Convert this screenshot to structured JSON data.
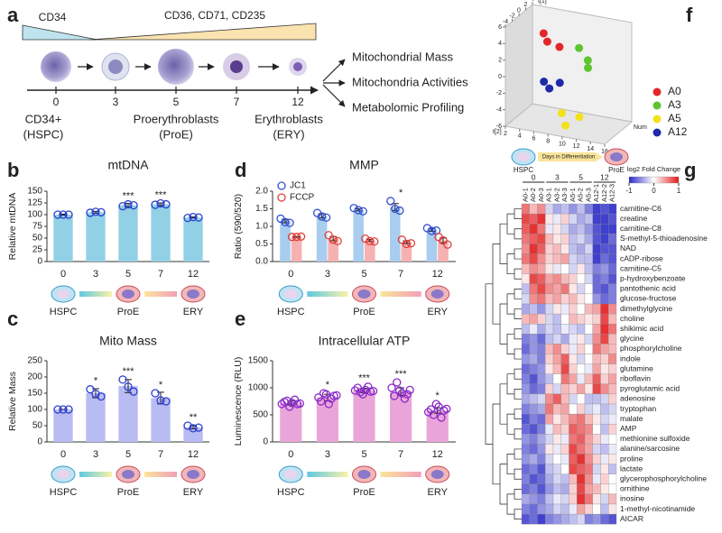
{
  "panel_labels": [
    "a",
    "b",
    "c",
    "d",
    "e",
    "f",
    "g"
  ],
  "panel_a": {
    "markers": [
      "CD34",
      "CD36, CD71, CD235"
    ],
    "days": [
      "0",
      "3",
      "5",
      "7",
      "12"
    ],
    "stages": [
      [
        "CD34+",
        "(HSPC)"
      ],
      [
        "Proerythroblasts",
        "(ProE)"
      ],
      [
        "Erythroblasts",
        "(ERY)"
      ]
    ],
    "readouts": [
      "Mitochondrial Mass",
      "Mitochondria Activities",
      "Metabolomic Profiling"
    ]
  },
  "chart_data": [
    {
      "type": "bar",
      "title": "mtDNA",
      "ylabel": "Relative mtDNA",
      "categories": [
        "0",
        "3",
        "5",
        "7",
        "12"
      ],
      "values": [
        100,
        105,
        120,
        122,
        94
      ],
      "errors": [
        1,
        2,
        4,
        3,
        1
      ],
      "replicates": [
        [
          100,
          100,
          100
        ],
        [
          104,
          106,
          105
        ],
        [
          118,
          122,
          120
        ],
        [
          121,
          124,
          122
        ],
        [
          93,
          95,
          94
        ]
      ],
      "annotations": [
        null,
        null,
        "***",
        "***",
        null
      ],
      "color": "#92d0e6",
      "marker_color": "#2b3fd0",
      "ylim": [
        0,
        150
      ],
      "yticks": [
        0,
        25,
        50,
        75,
        100,
        125,
        150
      ],
      "stage_labels": [
        "HSPC",
        "ProE",
        "ERY"
      ]
    },
    {
      "type": "bar",
      "title": "Mito Mass",
      "ylabel": "Relative Mass",
      "categories": [
        "0",
        "3",
        "5",
        "7",
        "12"
      ],
      "values": [
        100,
        150,
        172,
        135,
        45
      ],
      "errors": [
        0,
        14,
        20,
        18,
        5
      ],
      "replicates": [
        [
          100,
          100,
          100
        ],
        [
          162,
          148,
          140
        ],
        [
          192,
          170,
          155
        ],
        [
          150,
          128,
          125
        ],
        [
          50,
          42,
          44
        ]
      ],
      "annotations": [
        null,
        "*",
        "***",
        "*",
        "**"
      ],
      "color": "#b9bcf2",
      "marker_color": "#2b3fd0",
      "ylim": [
        0,
        250
      ],
      "yticks": [
        0,
        50,
        100,
        150,
        200,
        250
      ],
      "stage_labels": [
        "HSPC",
        "ProE",
        "ERY"
      ]
    },
    {
      "type": "bar",
      "title": "MMP",
      "ylabel": "Ratio (590/520)",
      "categories": [
        "0",
        "3",
        "5",
        "7",
        "12"
      ],
      "series": [
        {
          "name": "JC1",
          "color": "#a8cdee",
          "marker_color": "#3350d0",
          "values": [
            1.15,
            1.3,
            1.47,
            1.55,
            0.9
          ],
          "errors": [
            0.05,
            0.06,
            0.03,
            0.1,
            0.04
          ],
          "replicates": [
            [
              1.22,
              1.12,
              1.1
            ],
            [
              1.38,
              1.28,
              1.25
            ],
            [
              1.52,
              1.46,
              1.43
            ],
            [
              1.72,
              1.5,
              1.45
            ],
            [
              0.95,
              0.87,
              0.88
            ]
          ]
        },
        {
          "name": "FCCP",
          "color": "#f6b1b1",
          "marker_color": "#e0403a",
          "values": [
            0.7,
            0.65,
            0.6,
            0.55,
            0.6
          ],
          "errors": [
            0.01,
            0.06,
            0.03,
            0.04,
            0.07
          ],
          "replicates": [
            [
              0.7,
              0.7,
              0.71
            ],
            [
              0.75,
              0.62,
              0.58
            ],
            [
              0.65,
              0.58,
              0.57
            ],
            [
              0.62,
              0.5,
              0.52
            ],
            [
              0.7,
              0.6,
              0.48
            ]
          ]
        }
      ],
      "annotations": [
        null,
        null,
        null,
        "*",
        null
      ],
      "ylim": [
        0,
        2
      ],
      "yticks": [
        {
          "value": 0,
          "label": "0.0"
        },
        0.5,
        {
          "value": 1,
          "label": "1.0"
        },
        1.5,
        {
          "value": 2,
          "label": "2.0"
        }
      ],
      "stage_labels": [
        "HSPC",
        "ProE",
        "ERY"
      ]
    },
    {
      "type": "bar",
      "title": "Intracellular ATP",
      "ylabel": "Luminescence (RLU)",
      "categories": [
        "0",
        "3",
        "5",
        "7",
        "12"
      ],
      "values": [
        720,
        820,
        950,
        930,
        580
      ],
      "errors": [
        40,
        60,
        40,
        70,
        50
      ],
      "replicates": [
        [
          700,
          740,
          760,
          650,
          720,
          780,
          700,
          710
        ],
        [
          820,
          750,
          900,
          880,
          700,
          800,
          850,
          860
        ],
        [
          950,
          1000,
          920,
          880,
          960,
          1020,
          930,
          940
        ],
        [
          1000,
          850,
          1100,
          950,
          900,
          800,
          880,
          960
        ],
        [
          550,
          600,
          500,
          700,
          650,
          450,
          580,
          610
        ]
      ],
      "annotations": [
        null,
        "*",
        "***",
        "***",
        "*"
      ],
      "color": "#e9a5d9",
      "marker_color": "#8a2bc8",
      "ylim": [
        0,
        1500
      ],
      "yticks": [
        0,
        500,
        1000,
        1500
      ],
      "stage_labels": [
        "HSPC",
        "ProE",
        "ERY"
      ]
    },
    {
      "type": "scatter3d",
      "xlabel": "Num",
      "ylabel": "t[2]",
      "zlabel": "t[1]",
      "xlim": [
        2,
        16
      ],
      "xticks": [
        2,
        4,
        6,
        8,
        10,
        12,
        14,
        16
      ],
      "ylim": [
        -4,
        4
      ],
      "yticks": [
        -4,
        -2,
        0,
        2,
        4
      ],
      "zlim": [
        -6,
        6
      ],
      "zticks": [
        -6,
        -4,
        -2,
        0,
        2,
        4,
        6
      ],
      "series": [
        {
          "name": "A0",
          "color": "#e3262b",
          "x": [
            5,
            6,
            7
          ],
          "y": [
            1,
            0,
            1.5
          ],
          "z": [
            4,
            3.5,
            2.5
          ]
        },
        {
          "name": "A3",
          "color": "#5fc431",
          "x": [
            10,
            11,
            11.5
          ],
          "y": [
            1,
            1.5,
            0.5
          ],
          "z": [
            3,
            1.5,
            1
          ]
        },
        {
          "name": "A5",
          "color": "#f2e21b",
          "x": [
            9,
            10,
            11
          ],
          "y": [
            -2,
            -3,
            -1
          ],
          "z": [
            -4,
            -5,
            -4.5
          ]
        },
        {
          "name": "A12",
          "color": "#1e2aa8",
          "x": [
            6,
            7,
            8
          ],
          "y": [
            -1,
            -1.5,
            -0.5
          ],
          "z": [
            -1,
            -1.5,
            -1
          ]
        }
      ],
      "legend": "right"
    },
    {
      "type": "heatmap",
      "header": {
        "start": "HSPC",
        "end": "ProE",
        "label": "Days in Differentiation"
      },
      "group_labels": [
        "0",
        "3",
        "5",
        "12"
      ],
      "column_labels": [
        "A0-1",
        "A0-2",
        "A0-3",
        "A3-1",
        "A3-2",
        "A3-3",
        "A5-1",
        "A5-2",
        "A5-3",
        "A12-1",
        "A12-2",
        "A12-3"
      ],
      "row_labels": [
        "carnitine-C6",
        "creatine",
        "carnitine-C8",
        "S-methyl-5-thioadenosine",
        "NAD",
        "cADP-ribose",
        "carnitine-C5",
        "p-hydroxybenzoate",
        "pantothenic acid",
        "glucose-fructose",
        "dimethylglycine",
        "choline",
        "shikimic acid",
        "glycine",
        "phosphorylcholine",
        "indole",
        "glutamine",
        "riboflavin",
        "pyroglutamic acid",
        "adenosine",
        "tryptophan",
        "malate",
        "AMP",
        "methionine sulfoxide",
        "alanine/sarcosine",
        "proline",
        "lactate",
        "glycerophosphorylcholine",
        "ornithine",
        "inosine",
        "1-methyl-nicotinamide",
        "AICAR"
      ],
      "values": [
        [
          0.6,
          0.3,
          0.5,
          -0.2,
          -0.4,
          -0.3,
          -0.5,
          -0.3,
          -0.6,
          -0.9,
          -0.8,
          -0.9
        ],
        [
          0.8,
          0.7,
          0.9,
          0.1,
          -0.1,
          0.2,
          -0.2,
          -0.4,
          -0.3,
          -0.9,
          -0.9,
          -0.8
        ],
        [
          0.7,
          0.9,
          0.6,
          -0.1,
          0.1,
          -0.2,
          -0.4,
          -0.3,
          -0.5,
          -0.8,
          -0.9,
          -0.9
        ],
        [
          0.6,
          0.7,
          0.8,
          0.3,
          0.1,
          0.2,
          -0.3,
          -0.2,
          -0.4,
          -0.8,
          -0.9,
          -0.7
        ],
        [
          0.5,
          0.9,
          0.7,
          0.2,
          0.3,
          0.1,
          -0.3,
          -0.4,
          -0.2,
          -0.9,
          -0.8,
          -0.8
        ],
        [
          0.6,
          0.8,
          0.5,
          0.2,
          0.3,
          0.4,
          -0.2,
          -0.3,
          -0.3,
          -0.9,
          -0.7,
          -0.8
        ],
        [
          0.3,
          0.5,
          0.4,
          0.1,
          -0.1,
          0.0,
          -0.2,
          0.1,
          -0.3,
          -0.6,
          -0.5,
          -0.7
        ],
        [
          0.1,
          0.8,
          0.7,
          0.4,
          0.5,
          0.3,
          0.2,
          0.0,
          -0.2,
          -0.7,
          -0.6,
          -0.8
        ],
        [
          -0.3,
          0.6,
          0.8,
          0.5,
          0.4,
          0.6,
          0.1,
          -0.2,
          0.0,
          -0.7,
          -0.8,
          -0.6
        ],
        [
          -0.2,
          0.5,
          0.6,
          0.3,
          0.4,
          0.2,
          0.3,
          0.1,
          0.0,
          -0.5,
          -0.7,
          -0.6
        ],
        [
          -0.4,
          -0.3,
          -0.5,
          -0.2,
          0.1,
          -0.1,
          0.2,
          0.0,
          0.3,
          0.4,
          0.9,
          0.5
        ],
        [
          0.3,
          0.4,
          0.2,
          -0.2,
          -0.3,
          0.0,
          0.3,
          0.2,
          0.1,
          0.2,
          0.8,
          0.3
        ],
        [
          -0.3,
          -0.1,
          -0.4,
          -0.2,
          -0.3,
          -0.1,
          -0.2,
          -0.3,
          0.0,
          0.4,
          0.9,
          0.6
        ],
        [
          -0.6,
          -0.5,
          -0.7,
          -0.3,
          -0.2,
          -0.4,
          -0.1,
          0.1,
          -0.2,
          0.5,
          0.8,
          0.3
        ],
        [
          -0.7,
          -0.5,
          -0.6,
          0.3,
          0.5,
          0.2,
          -0.1,
          0.2,
          0.0,
          0.6,
          0.4,
          0.3
        ],
        [
          -0.5,
          -0.4,
          -0.6,
          0.2,
          0.4,
          0.7,
          0.1,
          -0.2,
          0.0,
          0.3,
          0.2,
          0.5
        ],
        [
          -0.7,
          -0.6,
          -0.5,
          0.1,
          0.3,
          0.8,
          0.2,
          0.0,
          -0.1,
          0.4,
          0.1,
          0.2
        ],
        [
          -0.6,
          -0.8,
          -0.5,
          -0.3,
          0.0,
          0.6,
          0.4,
          -0.1,
          0.3,
          0.7,
          0.2,
          0.4
        ],
        [
          -0.5,
          -0.7,
          -0.6,
          0.2,
          -0.2,
          0.3,
          0.2,
          0.4,
          0.1,
          0.8,
          0.5,
          0.3
        ],
        [
          -0.4,
          -0.3,
          -0.2,
          0.5,
          0.7,
          0.3,
          -0.2,
          0.0,
          -0.3,
          -0.3,
          -0.2,
          0.2
        ],
        [
          -0.6,
          -0.5,
          -0.4,
          0.6,
          0.3,
          0.4,
          0.0,
          0.2,
          -0.2,
          -0.1,
          -0.3,
          -0.2
        ],
        [
          -0.8,
          -0.6,
          -0.7,
          0.4,
          0.1,
          0.3,
          0.5,
          0.6,
          0.3,
          0.1,
          -0.2,
          -0.1
        ],
        [
          -0.7,
          -0.8,
          -0.6,
          -0.1,
          0.3,
          0.2,
          0.7,
          0.6,
          0.5,
          0.0,
          -0.3,
          0.2
        ],
        [
          -0.5,
          -0.6,
          -0.4,
          -0.2,
          0.1,
          -0.1,
          0.6,
          0.7,
          0.4,
          0.2,
          -0.1,
          0.0
        ],
        [
          -0.6,
          -0.7,
          -0.5,
          0.1,
          -0.1,
          0.2,
          0.8,
          0.6,
          0.4,
          -0.2,
          -0.3,
          -0.1
        ],
        [
          -0.5,
          -0.4,
          -0.6,
          -0.2,
          0.0,
          -0.1,
          0.7,
          0.9,
          0.5,
          0.2,
          -0.1,
          0.1
        ],
        [
          -0.7,
          -0.6,
          -0.8,
          -0.3,
          -0.2,
          0.0,
          0.8,
          0.7,
          0.6,
          -0.2,
          0.1,
          -0.3
        ],
        [
          -0.6,
          -0.8,
          -0.7,
          -0.4,
          -0.2,
          -0.3,
          0.3,
          0.9,
          0.5,
          -0.1,
          0.2,
          0.0
        ],
        [
          -0.7,
          -0.6,
          -0.8,
          -0.5,
          -0.3,
          -0.4,
          0.2,
          0.8,
          0.4,
          0.3,
          0.1,
          0.0
        ],
        [
          -0.4,
          -0.5,
          -0.6,
          -0.3,
          -0.1,
          -0.2,
          0.2,
          0.9,
          0.6,
          0.1,
          -0.2,
          0.3
        ],
        [
          -0.6,
          -0.7,
          -0.5,
          -0.4,
          -0.2,
          -0.3,
          -0.1,
          0.4,
          0.2,
          0.0,
          -0.3,
          0.1
        ],
        [
          -0.8,
          -0.7,
          -0.9,
          -0.6,
          -0.5,
          -0.4,
          -0.3,
          -0.2,
          -0.6,
          -0.5,
          -0.7,
          -0.8
        ]
      ],
      "zlim": [
        -1,
        1
      ],
      "zticks": [
        -1,
        0,
        1
      ],
      "colors": [
        "#2b2bc8",
        "#ffffff",
        "#e31a1c"
      ],
      "colorbar_title": "log2 Fold Change"
    }
  ]
}
